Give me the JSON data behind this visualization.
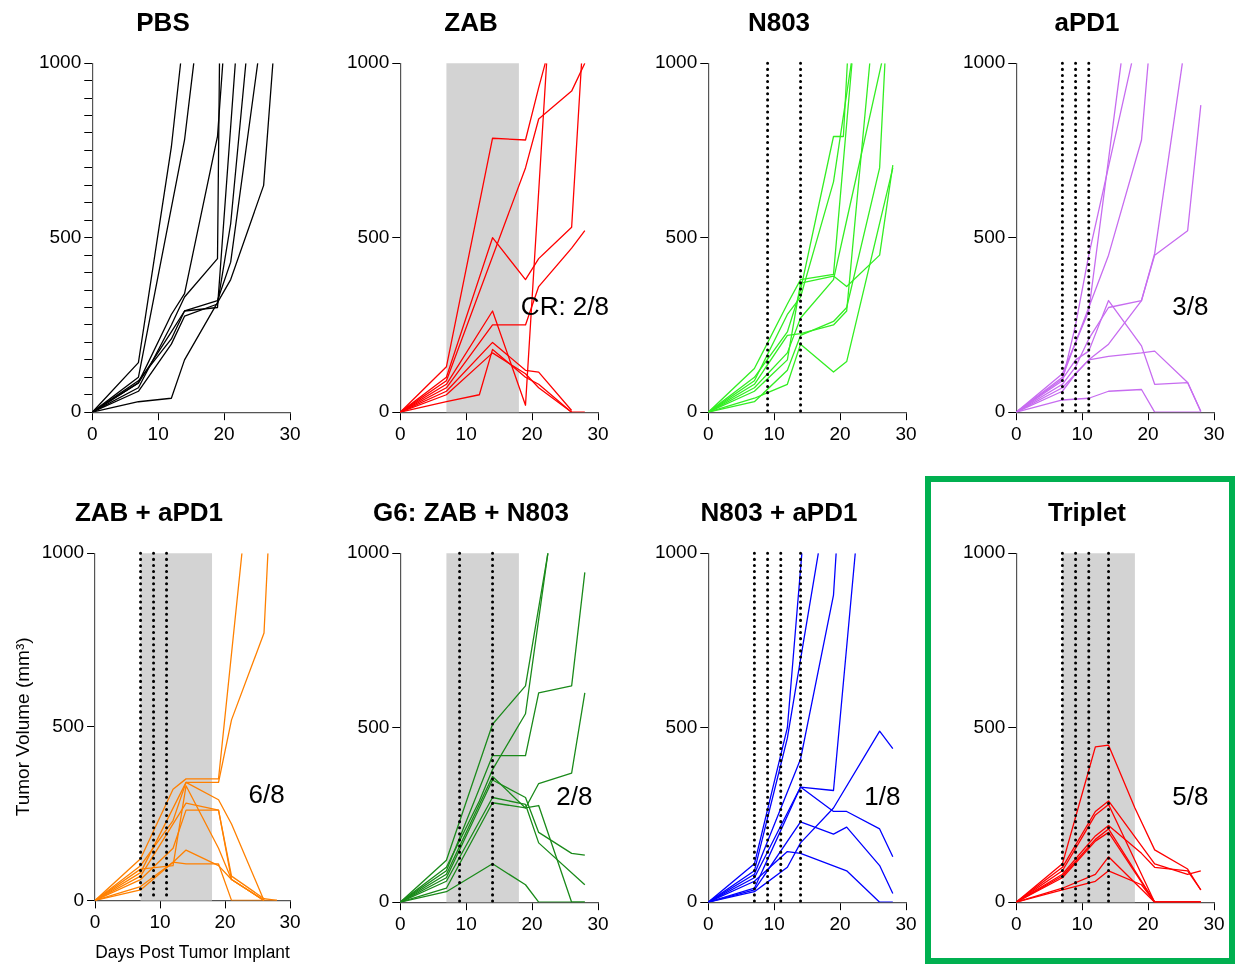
{
  "chart_data": [
    {
      "type": "line",
      "title": "PBS",
      "xlim": [
        0,
        30
      ],
      "xticks": [
        0,
        10,
        20,
        30
      ],
      "ylim": [
        0,
        1000
      ],
      "yticks": [
        0,
        {
          "value": 50,
          "label": null
        },
        {
          "value": 100,
          "label": null
        },
        {
          "value": 150,
          "label": null
        },
        {
          "value": 200,
          "label": null
        },
        {
          "value": 250,
          "label": null
        },
        {
          "value": 300,
          "label": null
        },
        {
          "value": 350,
          "label": null
        },
        {
          "value": 400,
          "label": null
        },
        {
          "value": 450,
          "label": null
        },
        500,
        {
          "value": 550,
          "label": null
        },
        {
          "value": 600,
          "label": null
        },
        {
          "value": 650,
          "label": null
        },
        {
          "value": 700,
          "label": null
        },
        {
          "value": 750,
          "label": null
        },
        {
          "value": 800,
          "label": null
        },
        {
          "value": 850,
          "label": null
        },
        {
          "value": 900,
          "label": null
        },
        {
          "value": 950,
          "label": null
        },
        1000
      ],
      "legend": false,
      "series": [
        {
          "color": "#000000",
          "x": [
            0,
            7,
            12,
            13.4
          ],
          "values": [
            0,
            142,
            760,
            1000
          ]
        },
        {
          "color": "#000000",
          "x": [
            0,
            7,
            14,
            15.4
          ],
          "values": [
            0,
            100,
            780,
            1000
          ]
        },
        {
          "color": "#000000",
          "x": [
            0,
            7,
            12,
            14,
            19,
            19.8
          ],
          "values": [
            0,
            84,
            280,
            340,
            790,
            1000
          ]
        },
        {
          "color": "#000000",
          "x": [
            0,
            7,
            12,
            14,
            19,
            19.3
          ],
          "values": [
            0,
            70,
            250,
            330,
            440,
            1000
          ]
        },
        {
          "color": "#000000",
          "x": [
            0,
            7,
            12,
            14,
            19,
            21.7
          ],
          "values": [
            0,
            84,
            230,
            290,
            300,
            1000
          ]
        },
        {
          "color": "#000000",
          "x": [
            0,
            7,
            12,
            14,
            19,
            21,
            23.3
          ],
          "values": [
            0,
            60,
            195,
            275,
            310,
            540,
            1000
          ]
        },
        {
          "color": "#000000",
          "x": [
            0,
            7,
            12,
            14,
            19,
            21,
            25.1
          ],
          "values": [
            0,
            90,
            210,
            290,
            320,
            430,
            1000
          ]
        },
        {
          "color": "#000000",
          "x": [
            0,
            7,
            12,
            14,
            21,
            26,
            27.4
          ],
          "values": [
            0,
            30,
            40,
            150,
            380,
            650,
            1000
          ]
        }
      ]
    },
    {
      "type": "line",
      "title": "ZAB",
      "xlim": [
        0,
        30
      ],
      "xticks": [
        0,
        10,
        20,
        30
      ],
      "ylim": [
        0,
        1000
      ],
      "yticks": [
        0,
        500,
        1000
      ],
      "legend": false,
      "annotations": [
        "CR: 2/8"
      ],
      "bands": [
        {
          "axis": "x",
          "from": 7,
          "to": 18,
          "color": "#d3d3d3"
        }
      ],
      "series": [
        {
          "color": "#ff0000",
          "x": [
            0,
            7,
            14,
            19,
            21,
            22
          ],
          "values": [
            0,
            130,
            785,
            780,
            930,
            1000
          ]
        },
        {
          "color": "#ff0000",
          "x": [
            0,
            7,
            14,
            19,
            21,
            26,
            27.5
          ],
          "values": [
            0,
            100,
            500,
            380,
            440,
            530,
            1000
          ]
        },
        {
          "color": "#ff0000",
          "x": [
            0,
            7,
            19,
            21,
            26,
            28
          ],
          "values": [
            0,
            90,
            700,
            840,
            920,
            1000
          ]
        },
        {
          "color": "#ff0000",
          "x": [
            0,
            7,
            14,
            19,
            22.2
          ],
          "values": [
            0,
            80,
            290,
            20,
            1000
          ]
        },
        {
          "color": "#ff0000",
          "x": [
            0,
            7,
            14,
            19,
            21,
            26,
            28
          ],
          "values": [
            0,
            70,
            250,
            250,
            360,
            470,
            520
          ]
        },
        {
          "color": "#ff0000",
          "x": [
            0,
            7,
            14,
            19,
            21,
            26
          ],
          "values": [
            0,
            60,
            200,
            120,
            115,
            5
          ]
        },
        {
          "color": "#ff0000",
          "x": [
            0,
            7,
            14,
            19,
            21,
            26,
            28
          ],
          "values": [
            0,
            50,
            170,
            110,
            70,
            0,
            0
          ]
        },
        {
          "color": "#ff0000",
          "x": [
            0,
            7,
            12,
            14,
            19,
            21,
            26
          ],
          "values": [
            0,
            30,
            50,
            180,
            100,
            80,
            0
          ]
        }
      ]
    },
    {
      "type": "line",
      "title": "N803",
      "xlim": [
        0,
        30
      ],
      "xticks": [
        0,
        10,
        20,
        30
      ],
      "ylim": [
        0,
        1000
      ],
      "yticks": [
        0,
        500,
        1000
      ],
      "legend": false,
      "ref_lines": [
        {
          "axis": "x",
          "value": 9,
          "color": "#000000",
          "line_style": "dotted"
        },
        {
          "axis": "x",
          "value": 14,
          "color": "#000000",
          "line_style": "dotted"
        }
      ],
      "series": [
        {
          "color": "#33ee22",
          "x": [
            0,
            7,
            12,
            14,
            19,
            21.8
          ],
          "values": [
            0,
            125,
            310,
            380,
            395,
            1000
          ]
        },
        {
          "color": "#33ee22",
          "x": [
            0,
            7,
            12,
            14,
            19,
            20.5,
            21.1
          ],
          "values": [
            0,
            100,
            230,
            350,
            790,
            790,
            1000
          ]
        },
        {
          "color": "#33ee22",
          "x": [
            0,
            7,
            12,
            14,
            19,
            21.7
          ],
          "values": [
            0,
            90,
            280,
            330,
            660,
            1000
          ]
        },
        {
          "color": "#33ee22",
          "x": [
            0,
            7,
            12,
            14,
            19,
            21,
            24.5
          ],
          "values": [
            0,
            80,
            220,
            225,
            250,
            290,
            1000
          ]
        },
        {
          "color": "#33ee22",
          "x": [
            0,
            7,
            12,
            14,
            19,
            21,
            26,
            28
          ],
          "values": [
            0,
            60,
            150,
            370,
            390,
            360,
            450,
            708
          ]
        },
        {
          "color": "#33ee22",
          "x": [
            0,
            7,
            12,
            14,
            19,
            21,
            28
          ],
          "values": [
            0,
            40,
            80,
            195,
            115,
            145,
            700
          ]
        },
        {
          "color": "#33ee22",
          "x": [
            0,
            7,
            12,
            14,
            19,
            21,
            26,
            26.8
          ],
          "values": [
            0,
            30,
            120,
            220,
            260,
            300,
            700,
            1000
          ]
        },
        {
          "color": "#33ee22",
          "x": [
            0,
            7,
            12,
            14,
            19,
            21,
            26.3
          ],
          "values": [
            0,
            70,
            170,
            270,
            380,
            550,
            1000
          ]
        }
      ]
    },
    {
      "type": "line",
      "title": "aPD1",
      "xlim": [
        0,
        30
      ],
      "xticks": [
        0,
        10,
        20,
        30
      ],
      "ylim": [
        0,
        1000
      ],
      "yticks": [
        0,
        500,
        1000
      ],
      "legend": false,
      "annotations": [
        "3/8"
      ],
      "ref_lines": [
        {
          "axis": "x",
          "value": 7,
          "color": "#000000",
          "line_style": "dotted"
        },
        {
          "axis": "x",
          "value": 9,
          "color": "#000000",
          "line_style": "dotted"
        },
        {
          "axis": "x",
          "value": 11,
          "color": "#000000",
          "line_style": "dotted"
        }
      ],
      "series": [
        {
          "color": "#c76cf0",
          "x": [
            0,
            7,
            9,
            11,
            15.9
          ],
          "values": [
            0,
            110,
            200,
            290,
            1000
          ]
        },
        {
          "color": "#c76cf0",
          "x": [
            0,
            7,
            9,
            11,
            17.5
          ],
          "values": [
            0,
            90,
            250,
            450,
            1000
          ]
        },
        {
          "color": "#c76cf0",
          "x": [
            0,
            7,
            9,
            11,
            14,
            19,
            20
          ],
          "values": [
            0,
            100,
            200,
            300,
            450,
            780,
            1000
          ]
        },
        {
          "color": "#c76cf0",
          "x": [
            0,
            7,
            9,
            11,
            14,
            19,
            21,
            25.2
          ],
          "values": [
            0,
            80,
            130,
            210,
            300,
            320,
            455,
            1000
          ]
        },
        {
          "color": "#c76cf0",
          "x": [
            0,
            7,
            9,
            11,
            14,
            19,
            21,
            26,
            28
          ],
          "values": [
            0,
            95,
            150,
            175,
            320,
            190,
            80,
            85,
            2
          ]
        },
        {
          "color": "#c76cf0",
          "x": [
            0,
            7,
            9,
            11,
            14,
            19,
            21,
            26,
            28
          ],
          "values": [
            0,
            60,
            110,
            150,
            160,
            170,
            175,
            85,
            2
          ]
        },
        {
          "color": "#c76cf0",
          "x": [
            0,
            7,
            11,
            14,
            19,
            21,
            28
          ],
          "values": [
            0,
            35,
            40,
            60,
            65,
            0,
            0
          ]
        },
        {
          "color": "#c76cf0",
          "x": [
            0,
            7,
            9,
            11,
            14,
            19,
            21,
            26,
            28
          ],
          "values": [
            0,
            70,
            110,
            150,
            195,
            320,
            450,
            520,
            880
          ]
        }
      ]
    },
    {
      "type": "line",
      "title": "ZAB + aPD1",
      "xlabel": "Days Post Tumor Implant",
      "ylabel": "Tumor Volume (mm³)",
      "xlim": [
        0,
        30
      ],
      "xticks": [
        0,
        10,
        20,
        30
      ],
      "ylim": [
        0,
        1000
      ],
      "yticks": [
        0,
        500,
        1000
      ],
      "legend": false,
      "annotations": [
        "6/8"
      ],
      "bands": [
        {
          "axis": "x",
          "from": 7,
          "to": 18,
          "color": "#d3d3d3"
        }
      ],
      "ref_lines": [
        {
          "axis": "x",
          "value": 7,
          "color": "#000000",
          "line_style": "dotted"
        },
        {
          "axis": "x",
          "value": 9,
          "color": "#000000",
          "line_style": "dotted"
        },
        {
          "axis": "x",
          "value": 11,
          "color": "#000000",
          "line_style": "dotted"
        }
      ],
      "series": [
        {
          "color": "#ff8000",
          "x": [
            0,
            7,
            12,
            14,
            19,
            22.6
          ],
          "values": [
            0,
            120,
            320,
            350,
            350,
            1000
          ]
        },
        {
          "color": "#ff8000",
          "x": [
            0,
            7,
            12,
            14,
            19,
            21,
            26,
            26.6
          ],
          "values": [
            0,
            100,
            230,
            340,
            340,
            520,
            770,
            1000
          ]
        },
        {
          "color": "#ff8000",
          "x": [
            0,
            7,
            14,
            19,
            21,
            26,
            28
          ],
          "values": [
            0,
            80,
            340,
            290,
            220,
            0,
            0
          ]
        },
        {
          "color": "#ff8000",
          "x": [
            0,
            7,
            14,
            19,
            21,
            26,
            28
          ],
          "values": [
            0,
            70,
            280,
            260,
            70,
            5,
            0
          ]
        },
        {
          "color": "#ff8000",
          "x": [
            0,
            7,
            12,
            14,
            19,
            21,
            26
          ],
          "values": [
            0,
            60,
            150,
            260,
            260,
            60,
            0
          ]
        },
        {
          "color": "#ff8000",
          "x": [
            0,
            7,
            12,
            14,
            19,
            21,
            26
          ],
          "values": [
            0,
            40,
            110,
            145,
            100,
            60,
            0
          ]
        },
        {
          "color": "#ff8000",
          "x": [
            0,
            7,
            12,
            14,
            19,
            21,
            26
          ],
          "values": [
            0,
            90,
            100,
            330,
            150,
            60,
            0
          ]
        },
        {
          "color": "#ff8000",
          "x": [
            0,
            7,
            12,
            14,
            19,
            21,
            26
          ],
          "values": [
            0,
            30,
            110,
            105,
            105,
            0,
            0
          ]
        }
      ]
    },
    {
      "type": "line",
      "title": "G6: ZAB + N803",
      "xlim": [
        0,
        30
      ],
      "xticks": [
        0,
        10,
        20,
        30
      ],
      "ylim": [
        0,
        1000
      ],
      "yticks": [
        0,
        500,
        1000
      ],
      "legend": false,
      "annotations": [
        "2/8"
      ],
      "bands": [
        {
          "axis": "x",
          "from": 7,
          "to": 18,
          "color": "#d3d3d3"
        }
      ],
      "ref_lines": [
        {
          "axis": "x",
          "value": 9,
          "color": "#000000",
          "line_style": "dotted"
        },
        {
          "axis": "x",
          "value": 14,
          "color": "#000000",
          "line_style": "dotted"
        }
      ],
      "series": [
        {
          "color": "#1a8a1a",
          "x": [
            0,
            7,
            14,
            19,
            22.4
          ],
          "values": [
            0,
            120,
            510,
            620,
            1000
          ]
        },
        {
          "color": "#1a8a1a",
          "x": [
            0,
            7,
            12,
            14,
            19,
            22.4
          ],
          "values": [
            0,
            100,
            290,
            380,
            540,
            1000
          ]
        },
        {
          "color": "#1a8a1a",
          "x": [
            0,
            7,
            14,
            19,
            21,
            26,
            28
          ],
          "values": [
            0,
            90,
            420,
            420,
            600,
            620,
            945
          ]
        },
        {
          "color": "#1a8a1a",
          "x": [
            0,
            7,
            14,
            19,
            21,
            26,
            28
          ],
          "values": [
            0,
            80,
            360,
            270,
            340,
            370,
            600
          ]
        },
        {
          "color": "#1a8a1a",
          "x": [
            0,
            7,
            14,
            19,
            21,
            26,
            28
          ],
          "values": [
            0,
            70,
            350,
            300,
            200,
            140,
            135
          ]
        },
        {
          "color": "#1a8a1a",
          "x": [
            0,
            7,
            14,
            19,
            21,
            28
          ],
          "values": [
            0,
            60,
            300,
            280,
            170,
            50
          ]
        },
        {
          "color": "#1a8a1a",
          "x": [
            0,
            7,
            14,
            19,
            21,
            26,
            28
          ],
          "values": [
            0,
            40,
            285,
            270,
            277,
            0,
            0
          ]
        },
        {
          "color": "#1a8a1a",
          "x": [
            0,
            7,
            14,
            19,
            21,
            26,
            28
          ],
          "values": [
            0,
            30,
            110,
            50,
            0,
            0,
            0
          ]
        }
      ]
    },
    {
      "type": "line",
      "title": "N803 + aPD1",
      "xlim": [
        0,
        30
      ],
      "xticks": [
        0,
        10,
        20,
        30
      ],
      "ylim": [
        0,
        1000
      ],
      "yticks": [
        0,
        500,
        1000
      ],
      "legend": false,
      "annotations": [
        "1/8"
      ],
      "ref_lines": [
        {
          "axis": "x",
          "value": 7,
          "color": "#000000",
          "line_style": "dotted"
        },
        {
          "axis": "x",
          "value": 9,
          "color": "#000000",
          "line_style": "dotted"
        },
        {
          "axis": "x",
          "value": 11,
          "color": "#000000",
          "line_style": "dotted"
        },
        {
          "axis": "x",
          "value": 14,
          "color": "#000000",
          "line_style": "dotted"
        }
      ],
      "series": [
        {
          "color": "#0000ff",
          "x": [
            0,
            7,
            12,
            14.2
          ],
          "values": [
            0,
            110,
            500,
            1000
          ]
        },
        {
          "color": "#0000ff",
          "x": [
            0,
            7,
            12,
            16.7
          ],
          "values": [
            0,
            90,
            470,
            1000
          ]
        },
        {
          "color": "#0000ff",
          "x": [
            0,
            7,
            14,
            19,
            19.4
          ],
          "values": [
            0,
            80,
            410,
            880,
            1000
          ]
        },
        {
          "color": "#0000ff",
          "x": [
            0,
            7,
            14,
            19,
            22.3
          ],
          "values": [
            0,
            70,
            330,
            320,
            1000
          ]
        },
        {
          "color": "#0000ff",
          "x": [
            0,
            7,
            14,
            19,
            21,
            26,
            28
          ],
          "values": [
            0,
            40,
            330,
            260,
            260,
            210,
            130
          ]
        },
        {
          "color": "#0000ff",
          "x": [
            0,
            7,
            14,
            19,
            21,
            26,
            28
          ],
          "values": [
            0,
            35,
            230,
            195,
            215,
            105,
            25
          ]
        },
        {
          "color": "#0000ff",
          "x": [
            0,
            7,
            12,
            14,
            21,
            26,
            28
          ],
          "values": [
            0,
            60,
            145,
            140,
            90,
            0,
            0
          ]
        },
        {
          "color": "#0000ff",
          "x": [
            0,
            7,
            12,
            14,
            19,
            26,
            28
          ],
          "values": [
            0,
            30,
            100,
            170,
            270,
            490,
            440
          ]
        }
      ]
    },
    {
      "type": "line",
      "title": "Triplet",
      "xlim": [
        0,
        30
      ],
      "xticks": [
        0,
        10,
        20,
        30
      ],
      "ylim": [
        0,
        1000
      ],
      "yticks": [
        0,
        500,
        1000
      ],
      "legend": false,
      "annotations": [
        "5/8"
      ],
      "bands": [
        {
          "axis": "x",
          "from": 7,
          "to": 18,
          "color": "#d3d3d3"
        }
      ],
      "ref_lines": [
        {
          "axis": "x",
          "value": 7,
          "color": "#000000",
          "line_style": "dotted"
        },
        {
          "axis": "x",
          "value": 9,
          "color": "#000000",
          "line_style": "dotted"
        },
        {
          "axis": "x",
          "value": 11,
          "color": "#000000",
          "line_style": "dotted"
        },
        {
          "axis": "x",
          "value": 14,
          "color": "#000000",
          "line_style": "dotted"
        }
      ],
      "series": [
        {
          "color": "#ff0000",
          "x": [
            0,
            7,
            12,
            14,
            18,
            21,
            26,
            28
          ],
          "values": [
            0,
            110,
            445,
            450,
            270,
            150,
            95,
            35
          ]
        },
        {
          "color": "#ff0000",
          "x": [
            0,
            7,
            12,
            14,
            21,
            26,
            28
          ],
          "values": [
            0,
            100,
            260,
            290,
            110,
            80,
            90
          ]
        },
        {
          "color": "#ff0000",
          "x": [
            0,
            7,
            12,
            14,
            21,
            26,
            28
          ],
          "values": [
            0,
            90,
            250,
            280,
            0,
            0,
            0
          ]
        },
        {
          "color": "#ff0000",
          "x": [
            0,
            7,
            12,
            14,
            19,
            21,
            26,
            28
          ],
          "values": [
            0,
            80,
            190,
            220,
            140,
            100,
            90,
            35
          ]
        },
        {
          "color": "#ff0000",
          "x": [
            0,
            7,
            12,
            14,
            21,
            28
          ],
          "values": [
            0,
            75,
            180,
            210,
            0,
            0
          ]
        },
        {
          "color": "#ff0000",
          "x": [
            0,
            7,
            12,
            14,
            21,
            28
          ],
          "values": [
            0,
            70,
            175,
            200,
            0,
            0
          ]
        },
        {
          "color": "#ff0000",
          "x": [
            0,
            7,
            12,
            14,
            21,
            28
          ],
          "values": [
            0,
            40,
            80,
            130,
            0,
            0
          ]
        },
        {
          "color": "#ff0000",
          "x": [
            0,
            7,
            12,
            14,
            19,
            21,
            28
          ],
          "values": [
            0,
            35,
            60,
            90,
            50,
            0,
            0
          ]
        }
      ]
    }
  ]
}
